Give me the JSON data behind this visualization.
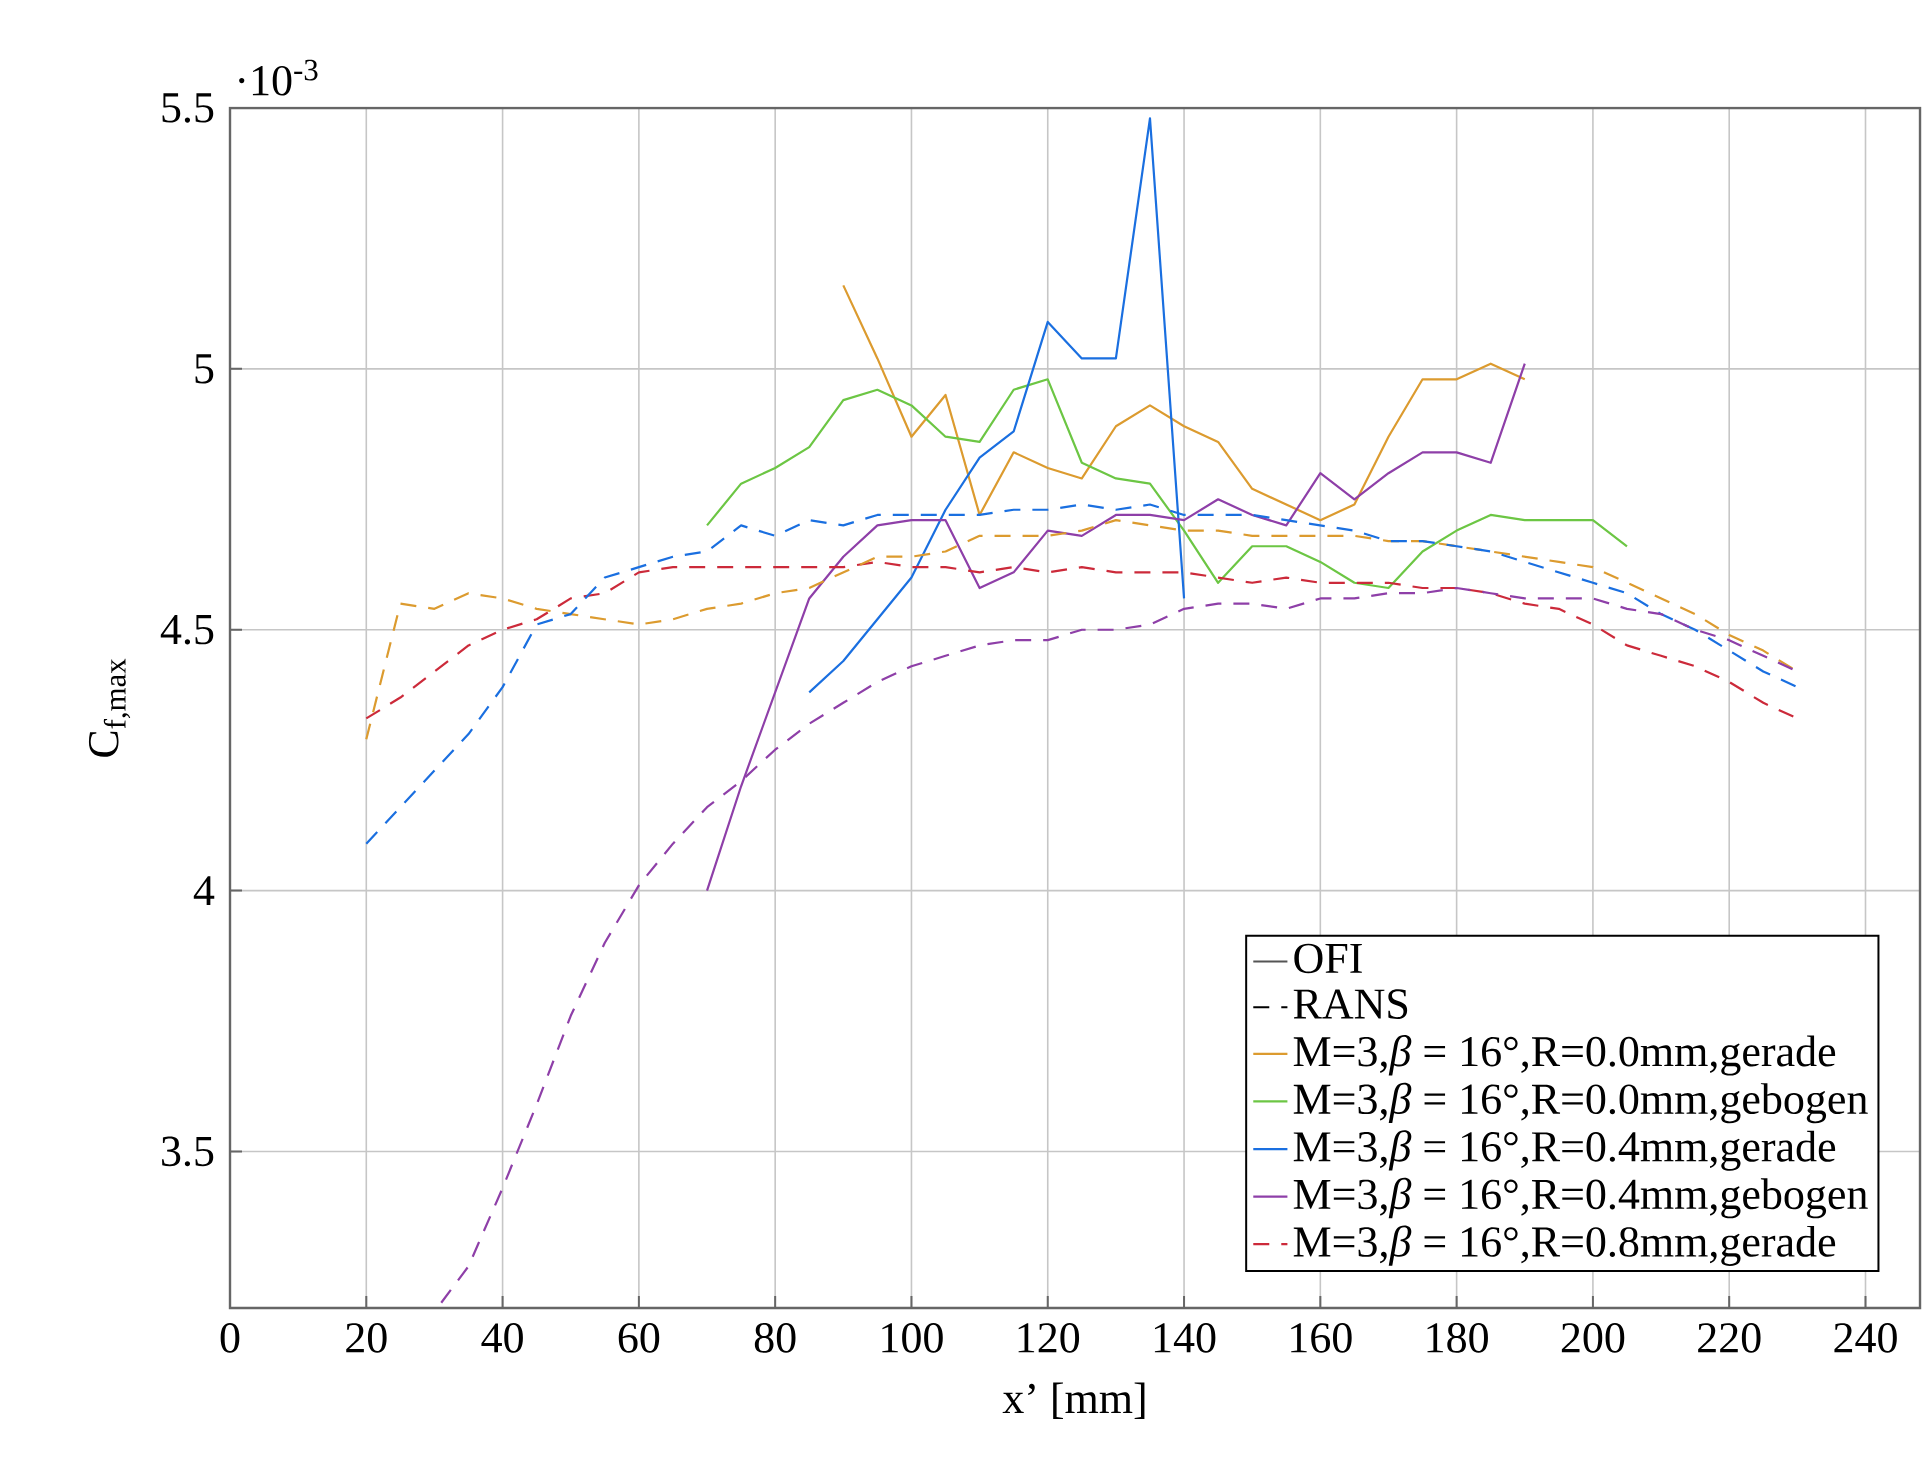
{
  "chart_data": {
    "type": "line",
    "xlabel": "x’ [mm]",
    "ylabel": "C$_{f,max}$",
    "annotations": [
      "·10$^{-3}$"
    ],
    "xlim": [
      0,
      248
    ],
    "ylim": [
      3.2,
      5.5
    ],
    "xticks": [
      0,
      20,
      40,
      60,
      80,
      100,
      120,
      140,
      160,
      180,
      200,
      220,
      240
    ],
    "yticks": [
      3.5,
      4,
      4.5,
      5,
      5.5
    ],
    "grid": true,
    "legend": "bottom right",
    "marker": "none",
    "series": [
      {
        "name": "OFI",
        "color": "#555555",
        "line_style": "solid"
      },
      {
        "name": "RANS",
        "color": "#000000",
        "line_style": "dashed"
      },
      {
        "name": "M=3,*β* = 16°,R=0.0mm,gerade",
        "color": "#dc9b2f",
        "line_style": "solid",
        "x": [
          90,
          95,
          100,
          105,
          110,
          115,
          120,
          125,
          130,
          135,
          140,
          145,
          150,
          155,
          160,
          165,
          170,
          175,
          180,
          185,
          190
        ],
        "values": [
          5.16,
          5.02,
          4.87,
          4.95,
          4.72,
          4.84,
          4.81,
          4.79,
          4.89,
          4.93,
          4.89,
          4.86,
          4.77,
          4.74,
          4.71,
          4.74,
          4.87,
          4.98,
          4.98,
          5.01,
          4.98
        ]
      },
      {
        "name": "M=3,*β* = 16°,R=0.0mm,gebogen",
        "color": "#6cc644",
        "line_style": "solid",
        "x": [
          70,
          75,
          80,
          85,
          90,
          95,
          100,
          105,
          110,
          115,
          120,
          125,
          130,
          135,
          140,
          145,
          150,
          155,
          160,
          165,
          170,
          175,
          180,
          185,
          190,
          195,
          200,
          205
        ],
        "values": [
          4.7,
          4.78,
          4.81,
          4.85,
          4.94,
          4.96,
          4.93,
          4.87,
          4.86,
          4.96,
          4.98,
          4.82,
          4.79,
          4.78,
          4.69,
          4.59,
          4.66,
          4.66,
          4.63,
          4.59,
          4.58,
          4.65,
          4.69,
          4.72,
          4.71,
          4.71,
          4.71,
          4.66
        ]
      },
      {
        "name": "M=3,*β* = 16°,R=0.4mm,gerade",
        "color": "#1a6fe0",
        "line_style": "solid",
        "x": [
          85,
          90,
          95,
          100,
          105,
          110,
          115,
          120,
          125,
          130,
          135,
          140
        ],
        "values": [
          4.38,
          4.44,
          4.52,
          4.6,
          4.73,
          4.83,
          4.88,
          5.09,
          5.02,
          5.02,
          5.48,
          4.56
        ]
      },
      {
        "name": "M=3,*β* = 16°,R=0.4mm,gebogen",
        "color": "#8e3fa8",
        "line_style": "solid",
        "x": [
          70,
          75,
          80,
          85,
          90,
          95,
          100,
          105,
          110,
          115,
          120,
          125,
          130,
          135,
          140,
          145,
          150,
          155,
          160,
          165,
          170,
          175,
          180,
          185,
          190
        ],
        "values": [
          4.0,
          4.2,
          4.38,
          4.56,
          4.64,
          4.7,
          4.71,
          4.71,
          4.58,
          4.61,
          4.69,
          4.68,
          4.72,
          4.72,
          4.71,
          4.75,
          4.72,
          4.7,
          4.8,
          4.75,
          4.8,
          4.84,
          4.84,
          4.82,
          5.01
        ]
      },
      {
        "name": "M=3,*β* = 16°,R=0.8mm,gerade",
        "color": "#cc2a3a",
        "line_style": "dashed",
        "x": [
          20,
          25,
          30,
          35,
          40,
          45,
          50,
          55,
          60,
          65,
          70,
          75,
          80,
          85,
          90,
          95,
          100,
          105,
          110,
          115,
          120,
          125,
          130,
          135,
          140,
          145,
          150,
          155,
          160,
          165,
          170,
          175,
          180,
          185,
          190,
          195,
          200,
          205,
          210,
          215,
          220,
          225,
          230
        ],
        "values": [
          4.33,
          4.37,
          4.42,
          4.47,
          4.5,
          4.52,
          4.56,
          4.57,
          4.61,
          4.62,
          4.62,
          4.62,
          4.62,
          4.62,
          4.62,
          4.63,
          4.62,
          4.62,
          4.61,
          4.62,
          4.61,
          4.62,
          4.61,
          4.61,
          4.61,
          4.6,
          4.59,
          4.6,
          4.59,
          4.59,
          4.59,
          4.58,
          4.58,
          4.57,
          4.55,
          4.54,
          4.51,
          4.47,
          4.45,
          4.43,
          4.4,
          4.36,
          4.33
        ]
      },
      {
        "color": "#dc9b2f",
        "line_style": "dashed",
        "x": [
          20,
          25,
          30,
          35,
          40,
          45,
          50,
          55,
          60,
          65,
          70,
          75,
          80,
          85,
          90,
          95,
          100,
          105,
          110,
          115,
          120,
          125,
          130,
          135,
          140,
          145,
          150,
          155,
          160,
          165,
          170,
          175,
          180,
          185,
          190,
          195,
          200,
          205,
          210,
          215,
          220,
          225,
          230
        ],
        "values": [
          4.29,
          4.55,
          4.54,
          4.57,
          4.56,
          4.54,
          4.53,
          4.52,
          4.51,
          4.52,
          4.54,
          4.55,
          4.57,
          4.58,
          4.61,
          4.64,
          4.64,
          4.65,
          4.68,
          4.68,
          4.68,
          4.69,
          4.71,
          4.7,
          4.69,
          4.69,
          4.68,
          4.68,
          4.68,
          4.68,
          4.67,
          4.67,
          4.66,
          4.65,
          4.64,
          4.63,
          4.62,
          4.59,
          4.56,
          4.53,
          4.49,
          4.46,
          4.42
        ]
      },
      {
        "color": "#1a6fe0",
        "line_style": "dashed",
        "x": [
          20,
          25,
          30,
          35,
          40,
          45,
          50,
          55,
          60,
          65,
          70,
          75,
          80,
          85,
          90,
          95,
          100,
          105,
          110,
          115,
          120,
          125,
          130,
          135,
          140,
          145,
          150,
          155,
          160,
          165,
          170,
          175,
          180,
          185,
          190,
          195,
          200,
          205,
          210,
          215,
          220,
          225,
          230
        ],
        "values": [
          4.09,
          4.16,
          4.23,
          4.3,
          4.39,
          4.51,
          4.53,
          4.6,
          4.62,
          4.64,
          4.65,
          4.7,
          4.68,
          4.71,
          4.7,
          4.72,
          4.72,
          4.72,
          4.72,
          4.73,
          4.73,
          4.74,
          4.73,
          4.74,
          4.72,
          4.72,
          4.72,
          4.71,
          4.7,
          4.69,
          4.67,
          4.67,
          4.66,
          4.65,
          4.63,
          4.61,
          4.59,
          4.57,
          4.53,
          4.5,
          4.46,
          4.42,
          4.39
        ]
      },
      {
        "color": "#8e3fa8",
        "line_style": "dashed",
        "x": [
          31,
          35,
          40,
          45,
          50,
          55,
          60,
          65,
          70,
          75,
          80,
          85,
          90,
          95,
          100,
          105,
          110,
          115,
          120,
          125,
          130,
          135,
          140,
          145,
          150,
          155,
          160,
          165,
          170,
          175,
          180,
          185,
          190,
          195,
          200,
          205,
          210,
          215,
          220,
          225,
          230
        ],
        "values": [
          3.21,
          3.28,
          3.43,
          3.59,
          3.76,
          3.9,
          4.01,
          4.09,
          4.16,
          4.21,
          4.27,
          4.32,
          4.36,
          4.4,
          4.43,
          4.45,
          4.47,
          4.48,
          4.48,
          4.5,
          4.5,
          4.51,
          4.54,
          4.55,
          4.55,
          4.54,
          4.56,
          4.56,
          4.57,
          4.57,
          4.58,
          4.57,
          4.56,
          4.56,
          4.56,
          4.54,
          4.53,
          4.5,
          4.48,
          4.45,
          4.42
        ]
      }
    ]
  }
}
